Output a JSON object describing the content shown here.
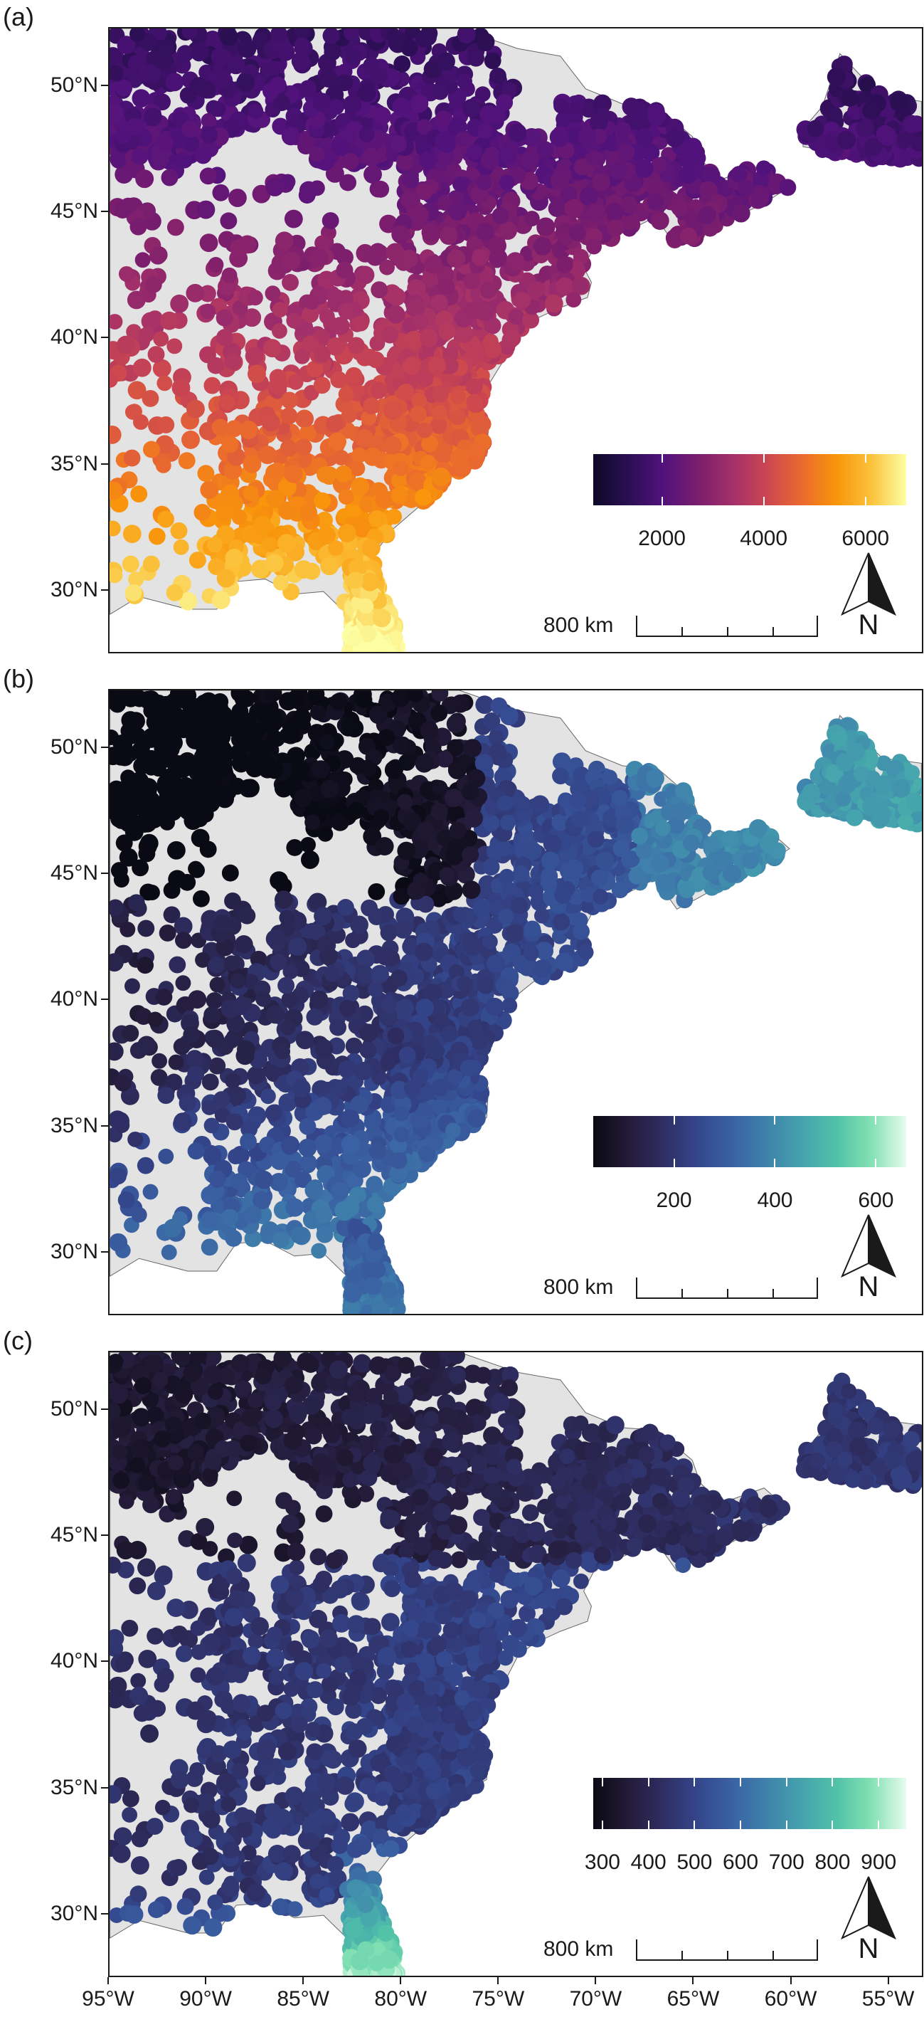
{
  "panels": [
    {
      "letter": "(a)",
      "legend": {
        "colors": [
          "#0d0829",
          "#2a0f52",
          "#51127c",
          "#7a1d6d",
          "#a3306a",
          "#cb4650",
          "#eb6a2d",
          "#f9950a",
          "#fbc33c",
          "#fcffa4"
        ],
        "min": 650,
        "max": 6800,
        "ticks": [
          "2000",
          "4000",
          "6000"
        ]
      }
    },
    {
      "letter": "(b)",
      "legend": {
        "colors": [
          "#0a0a14",
          "#231b38",
          "#2f2e63",
          "#34468c",
          "#3a62a3",
          "#3f82ac",
          "#45a3ad",
          "#52c2a8",
          "#84e1b4",
          "#e6fbee"
        ],
        "min": 40,
        "max": 660,
        "ticks": [
          "200",
          "400",
          "600"
        ]
      }
    },
    {
      "letter": "(c)",
      "legend": {
        "colors": [
          "#0a0a14",
          "#231b38",
          "#2f2e63",
          "#34468c",
          "#3a62a3",
          "#3f82ac",
          "#45a3ad",
          "#52c2a8",
          "#84e1b4",
          "#e6fbee"
        ],
        "min": 280,
        "max": 960,
        "ticks": [
          "300",
          "400",
          "500",
          "600",
          "700",
          "800",
          "900"
        ]
      }
    }
  ],
  "axes": {
    "y_labels": [
      "50°N",
      "45°N",
      "40°N",
      "35°N",
      "30°N"
    ],
    "y_values": [
      50,
      45,
      40,
      35,
      30
    ],
    "x_labels": [
      "95°W",
      "90°W",
      "85°W",
      "80°W",
      "75°W",
      "70°W",
      "65°W",
      "60°W",
      "55°W"
    ],
    "x_values": [
      -95,
      -90,
      -85,
      -80,
      -75,
      -70,
      -65,
      -60,
      -55
    ],
    "lon_range": [
      -95,
      -53.2
    ],
    "lat_range": [
      27.5,
      52.3
    ]
  },
  "scale": {
    "label": "800 km"
  },
  "north_arrow": {
    "label": "N"
  },
  "colors": {
    "land_outside": "#e3e3e3",
    "water": "#ffffff",
    "frame": "#1a1a1a"
  }
}
